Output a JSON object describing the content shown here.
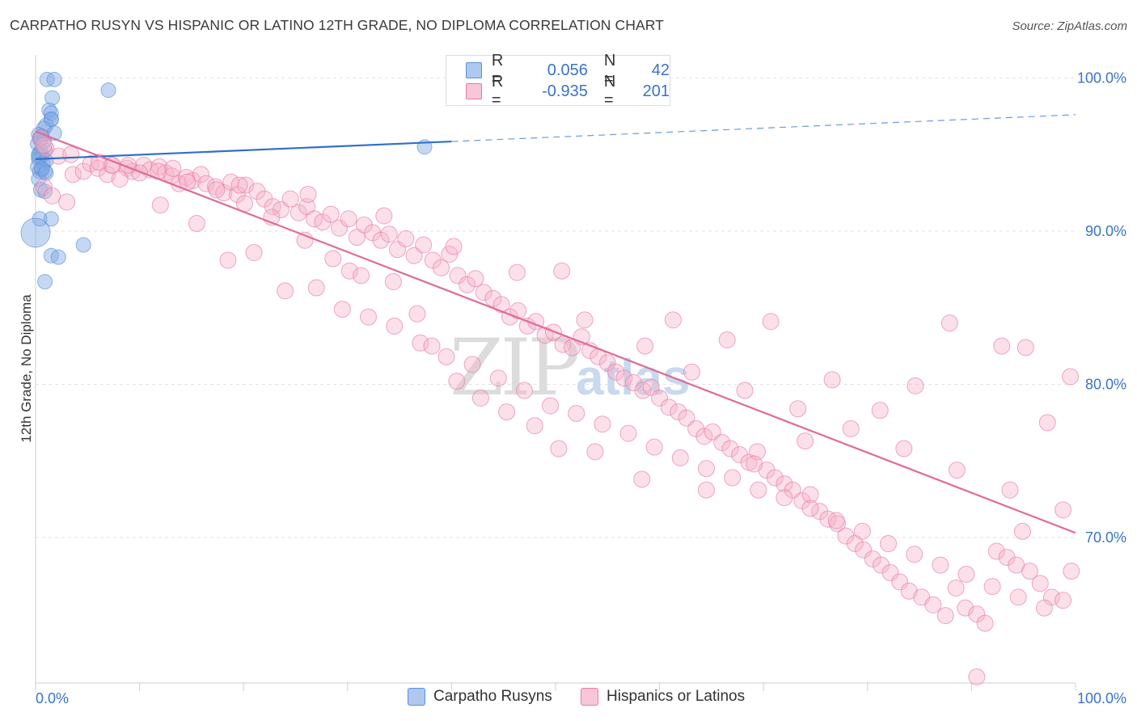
{
  "header": {
    "title": "CARPATHO RUSYN VS HISPANIC OR LATINO 12TH GRADE, NO DIPLOMA CORRELATION CHART",
    "source": "Source: ZipAtlas.com"
  },
  "stats": {
    "rows": [
      {
        "r_label": "R =",
        "r_value": "0.056",
        "n_label": "N =",
        "n_value": "42",
        "color": "#5b8fd6"
      },
      {
        "r_label": "R =",
        "r_value": "-0.935",
        "n_label": "N =",
        "n_value": "201",
        "color": "#e87aa3"
      }
    ]
  },
  "legend": {
    "items": [
      {
        "label": "Carpatho Rusyns",
        "color": "#5b8fd6"
      },
      {
        "label": "Hispanics or Latinos",
        "color": "#e87aa3"
      }
    ]
  },
  "watermark": {
    "zip": "ZIP",
    "atlas": "atlas"
  },
  "chart_data": {
    "type": "scatter",
    "title": "CARPATHO RUSYN VS HISPANIC OR LATINO 12TH GRADE, NO DIPLOMA CORRELATION CHART",
    "xlabel": "",
    "ylabel": "12th Grade, No Diploma",
    "xlim": [
      0,
      100
    ],
    "ylim": [
      60.5,
      101.5
    ],
    "x_tick_labels": [
      {
        "value": 0,
        "label": "0.0%"
      },
      {
        "value": 100,
        "label": "100.0%"
      }
    ],
    "y_tick_labels": [
      {
        "value": 100,
        "label": "100.0%"
      },
      {
        "value": 90,
        "label": "90.0%"
      },
      {
        "value": 80,
        "label": "80.0%"
      },
      {
        "value": 70,
        "label": "70.0%"
      }
    ],
    "series": [
      {
        "name": "Carpatho Rusyns",
        "color": "#5b8fd6",
        "trend": {
          "x0": 0,
          "y0": 94.7,
          "x1": 40,
          "y1": 95.85,
          "dash_to_x": 100,
          "dash_to_y": 97.6
        },
        "points": [
          [
            1.1,
            99.9
          ],
          [
            1.8,
            99.9
          ],
          [
            7,
            99.2
          ],
          [
            1.6,
            98.7
          ],
          [
            1.3,
            97.9
          ],
          [
            1.5,
            97.7
          ],
          [
            1.5,
            97.3
          ],
          [
            1.5,
            97.3
          ],
          [
            1,
            96.9
          ],
          [
            0.8,
            96.7
          ],
          [
            1.8,
            96.4
          ],
          [
            0.3,
            96.3
          ],
          [
            0.6,
            96.2
          ],
          [
            0.4,
            96
          ],
          [
            0.8,
            95.9
          ],
          [
            0.2,
            95.7
          ],
          [
            0.9,
            95.3
          ],
          [
            0.5,
            95.2
          ],
          [
            0.3,
            95
          ],
          [
            0.6,
            94.9
          ],
          [
            0.3,
            94.7
          ],
          [
            1,
            94.6
          ],
          [
            0.7,
            94.4
          ],
          [
            0.2,
            94.2
          ],
          [
            0.6,
            94
          ],
          [
            0.4,
            93.9
          ],
          [
            0.9,
            93.9
          ],
          [
            0.3,
            93.4
          ],
          [
            0.5,
            92.7
          ],
          [
            0.9,
            92.6
          ],
          [
            0.4,
            90.8
          ],
          [
            1.5,
            90.8
          ],
          [
            0,
            89.9
          ],
          [
            4.6,
            89.1
          ],
          [
            1.5,
            88.4
          ],
          [
            2.2,
            88.3
          ],
          [
            0.9,
            86.7
          ],
          [
            37.4,
            95.5
          ],
          [
            0.5,
            96.1
          ],
          [
            0.3,
            94.9
          ],
          [
            0.6,
            94.1
          ],
          [
            1,
            93.8
          ]
        ],
        "sizes": [
          9,
          9,
          9,
          9,
          9,
          9,
          9,
          9,
          9,
          9,
          9,
          9,
          9,
          9,
          9,
          9,
          9,
          9,
          9,
          9,
          9,
          9,
          9,
          9,
          9,
          9,
          9,
          9,
          9,
          9,
          9,
          9,
          18,
          9,
          9,
          9,
          9,
          9,
          9,
          9,
          9,
          9
        ]
      },
      {
        "name": "Hispanics or Latinos",
        "color": "#e87aa3",
        "trend": {
          "x0": 0,
          "y0": 96.5,
          "x1": 100,
          "y1": 70.3
        },
        "points": [
          [
            0.5,
            96.1
          ],
          [
            1,
            95.4
          ],
          [
            0.8,
            92.9
          ],
          [
            1.6,
            92.3
          ],
          [
            3.6,
            93.7
          ],
          [
            4.6,
            93.9
          ],
          [
            5.3,
            94.4
          ],
          [
            6,
            94.1
          ],
          [
            6.9,
            93.7
          ],
          [
            7.3,
            94.3
          ],
          [
            8.8,
            94.1
          ],
          [
            9.3,
            93.9
          ],
          [
            10.4,
            94.3
          ],
          [
            11,
            94
          ],
          [
            11.9,
            94.2
          ],
          [
            12.5,
            93.8
          ],
          [
            13.1,
            93.6
          ],
          [
            13.8,
            93.1
          ],
          [
            14.5,
            93.5
          ],
          [
            15.1,
            93.3
          ],
          [
            15.9,
            93.7
          ],
          [
            16.4,
            93.1
          ],
          [
            17.3,
            92.9
          ],
          [
            18.1,
            92.5
          ],
          [
            18.8,
            93.2
          ],
          [
            19.4,
            92.4
          ],
          [
            20.2,
            93
          ],
          [
            21.3,
            92.6
          ],
          [
            22,
            92.1
          ],
          [
            22.8,
            91.6
          ],
          [
            23.6,
            91.4
          ],
          [
            24.5,
            92.1
          ],
          [
            25.3,
            91.2
          ],
          [
            26.1,
            91.6
          ],
          [
            26.8,
            90.8
          ],
          [
            27.6,
            90.6
          ],
          [
            28.4,
            91.1
          ],
          [
            29.2,
            90.2
          ],
          [
            30.1,
            90.8
          ],
          [
            30.9,
            89.6
          ],
          [
            31.6,
            90.4
          ],
          [
            32.4,
            89.9
          ],
          [
            33.2,
            89.4
          ],
          [
            34,
            89.8
          ],
          [
            34.8,
            88.8
          ],
          [
            35.6,
            89.5
          ],
          [
            36.4,
            88.4
          ],
          [
            37.3,
            89.1
          ],
          [
            38.2,
            88.1
          ],
          [
            39,
            87.6
          ],
          [
            39.8,
            88.5
          ],
          [
            40.6,
            87.1
          ],
          [
            41.5,
            86.5
          ],
          [
            42.3,
            86.9
          ],
          [
            43.1,
            86
          ],
          [
            44,
            85.6
          ],
          [
            44.8,
            85.2
          ],
          [
            45.6,
            84.4
          ],
          [
            46.4,
            84.8
          ],
          [
            47.3,
            83.8
          ],
          [
            48.1,
            84.1
          ],
          [
            49,
            83.2
          ],
          [
            49.8,
            83.4
          ],
          [
            50.7,
            82.6
          ],
          [
            51.6,
            82.4
          ],
          [
            52.5,
            83.1
          ],
          [
            53.3,
            82.2
          ],
          [
            54.1,
            81.8
          ],
          [
            55,
            81.4
          ],
          [
            55.8,
            80.8
          ],
          [
            56.6,
            80.4
          ],
          [
            57.5,
            80.1
          ],
          [
            58.4,
            79.6
          ],
          [
            59.2,
            79.8
          ],
          [
            60,
            79.1
          ],
          [
            60.9,
            78.5
          ],
          [
            61.8,
            78.2
          ],
          [
            62.6,
            77.8
          ],
          [
            63.5,
            77.1
          ],
          [
            64.3,
            76.6
          ],
          [
            65.1,
            76.9
          ],
          [
            66,
            76.2
          ],
          [
            66.8,
            75.8
          ],
          [
            67.7,
            75.4
          ],
          [
            68.6,
            74.9
          ],
          [
            69.4,
            75.6
          ],
          [
            70.3,
            74.4
          ],
          [
            71.1,
            73.9
          ],
          [
            72,
            73.5
          ],
          [
            72.8,
            73.1
          ],
          [
            73.7,
            72.4
          ],
          [
            74.5,
            72.8
          ],
          [
            75.4,
            71.7
          ],
          [
            76.2,
            71.2
          ],
          [
            77.1,
            70.9
          ],
          [
            77.9,
            70.1
          ],
          [
            78.8,
            69.6
          ],
          [
            79.6,
            69.2
          ],
          [
            80.5,
            68.6
          ],
          [
            81.3,
            68.2
          ],
          [
            82.2,
            67.7
          ],
          [
            83.1,
            67.1
          ],
          [
            84,
            66.5
          ],
          [
            85.2,
            66.1
          ],
          [
            86.3,
            65.6
          ],
          [
            87.5,
            64.9
          ],
          [
            88.5,
            66.7
          ],
          [
            89.4,
            65.4
          ],
          [
            90.5,
            65
          ],
          [
            91.3,
            64.4
          ],
          [
            92.4,
            69.1
          ],
          [
            93.4,
            68.7
          ],
          [
            94.3,
            68.2
          ],
          [
            95.6,
            67.8
          ],
          [
            96.6,
            67
          ],
          [
            97.7,
            66.1
          ],
          [
            98.8,
            65.9
          ],
          [
            99.6,
            67.8
          ],
          [
            2.2,
            94.9
          ],
          [
            3,
            91.9
          ],
          [
            8.1,
            93.4
          ],
          [
            10,
            93.8
          ],
          [
            12,
            91.7
          ],
          [
            15.5,
            90.5
          ],
          [
            18.5,
            88.1
          ],
          [
            21,
            88.6
          ],
          [
            24,
            86.1
          ],
          [
            27,
            86.3
          ],
          [
            29.5,
            84.9
          ],
          [
            32,
            84.4
          ],
          [
            34.5,
            83.8
          ],
          [
            37,
            82.7
          ],
          [
            39.5,
            81.8
          ],
          [
            42,
            81.3
          ],
          [
            44.5,
            80.4
          ],
          [
            47,
            79.6
          ],
          [
            49.5,
            78.6
          ],
          [
            52,
            78.1
          ],
          [
            54.5,
            77.4
          ],
          [
            57,
            76.8
          ],
          [
            59.5,
            75.9
          ],
          [
            62,
            75.2
          ],
          [
            64.5,
            74.5
          ],
          [
            67,
            73.9
          ],
          [
            69.5,
            73.1
          ],
          [
            72,
            72.6
          ],
          [
            74.5,
            71.9
          ],
          [
            77,
            71.1
          ],
          [
            79.5,
            70.4
          ],
          [
            82,
            69.6
          ],
          [
            84.5,
            68.9
          ],
          [
            87,
            68.2
          ],
          [
            89.5,
            67.6
          ],
          [
            92,
            66.8
          ],
          [
            94.5,
            66.1
          ],
          [
            97,
            65.4
          ],
          [
            7.4,
            94.3
          ],
          [
            13.2,
            94.1
          ],
          [
            19.6,
            93
          ],
          [
            26.2,
            92.4
          ],
          [
            33.5,
            91
          ],
          [
            40.2,
            89
          ],
          [
            46.3,
            87.3
          ],
          [
            52.8,
            84.2
          ],
          [
            58.6,
            82.5
          ],
          [
            63.1,
            80.8
          ],
          [
            68.2,
            79.6
          ],
          [
            73.3,
            78.4
          ],
          [
            78.4,
            77.1
          ],
          [
            83.5,
            75.8
          ],
          [
            88.6,
            74.4
          ],
          [
            93.7,
            73.1
          ],
          [
            98.8,
            71.8
          ],
          [
            30.2,
            87.4
          ],
          [
            50.6,
            87.4
          ],
          [
            61.3,
            84.2
          ],
          [
            66.5,
            82.9
          ],
          [
            70.7,
            84.1
          ],
          [
            76.6,
            80.3
          ],
          [
            84.6,
            79.9
          ],
          [
            92.9,
            82.5
          ],
          [
            99.5,
            80.5
          ],
          [
            95.2,
            82.4
          ],
          [
            87.9,
            84
          ],
          [
            81.2,
            78.3
          ],
          [
            74,
            76.3
          ],
          [
            69.1,
            74.8
          ],
          [
            64.5,
            73.1
          ],
          [
            58.3,
            73.8
          ],
          [
            53.8,
            75.6
          ],
          [
            50.3,
            75.8
          ],
          [
            48,
            77.3
          ],
          [
            45.3,
            78.2
          ],
          [
            42.8,
            79.1
          ],
          [
            40.5,
            80.2
          ],
          [
            38.1,
            82.5
          ],
          [
            36.7,
            84.6
          ],
          [
            34.4,
            86.7
          ],
          [
            31.3,
            87.1
          ],
          [
            28.6,
            88.2
          ],
          [
            25.9,
            89.4
          ],
          [
            22.7,
            90.9
          ],
          [
            20.1,
            91.8
          ],
          [
            17.4,
            92.7
          ],
          [
            14.6,
            93.2
          ],
          [
            11.8,
            93.9
          ],
          [
            8.9,
            94.3
          ],
          [
            6.1,
            94.5
          ],
          [
            3.4,
            95
          ],
          [
            0.8,
            95.6
          ],
          [
            90.5,
            60.9
          ],
          [
            97.3,
            77.5
          ],
          [
            94.9,
            70.4
          ]
        ]
      }
    ]
  }
}
